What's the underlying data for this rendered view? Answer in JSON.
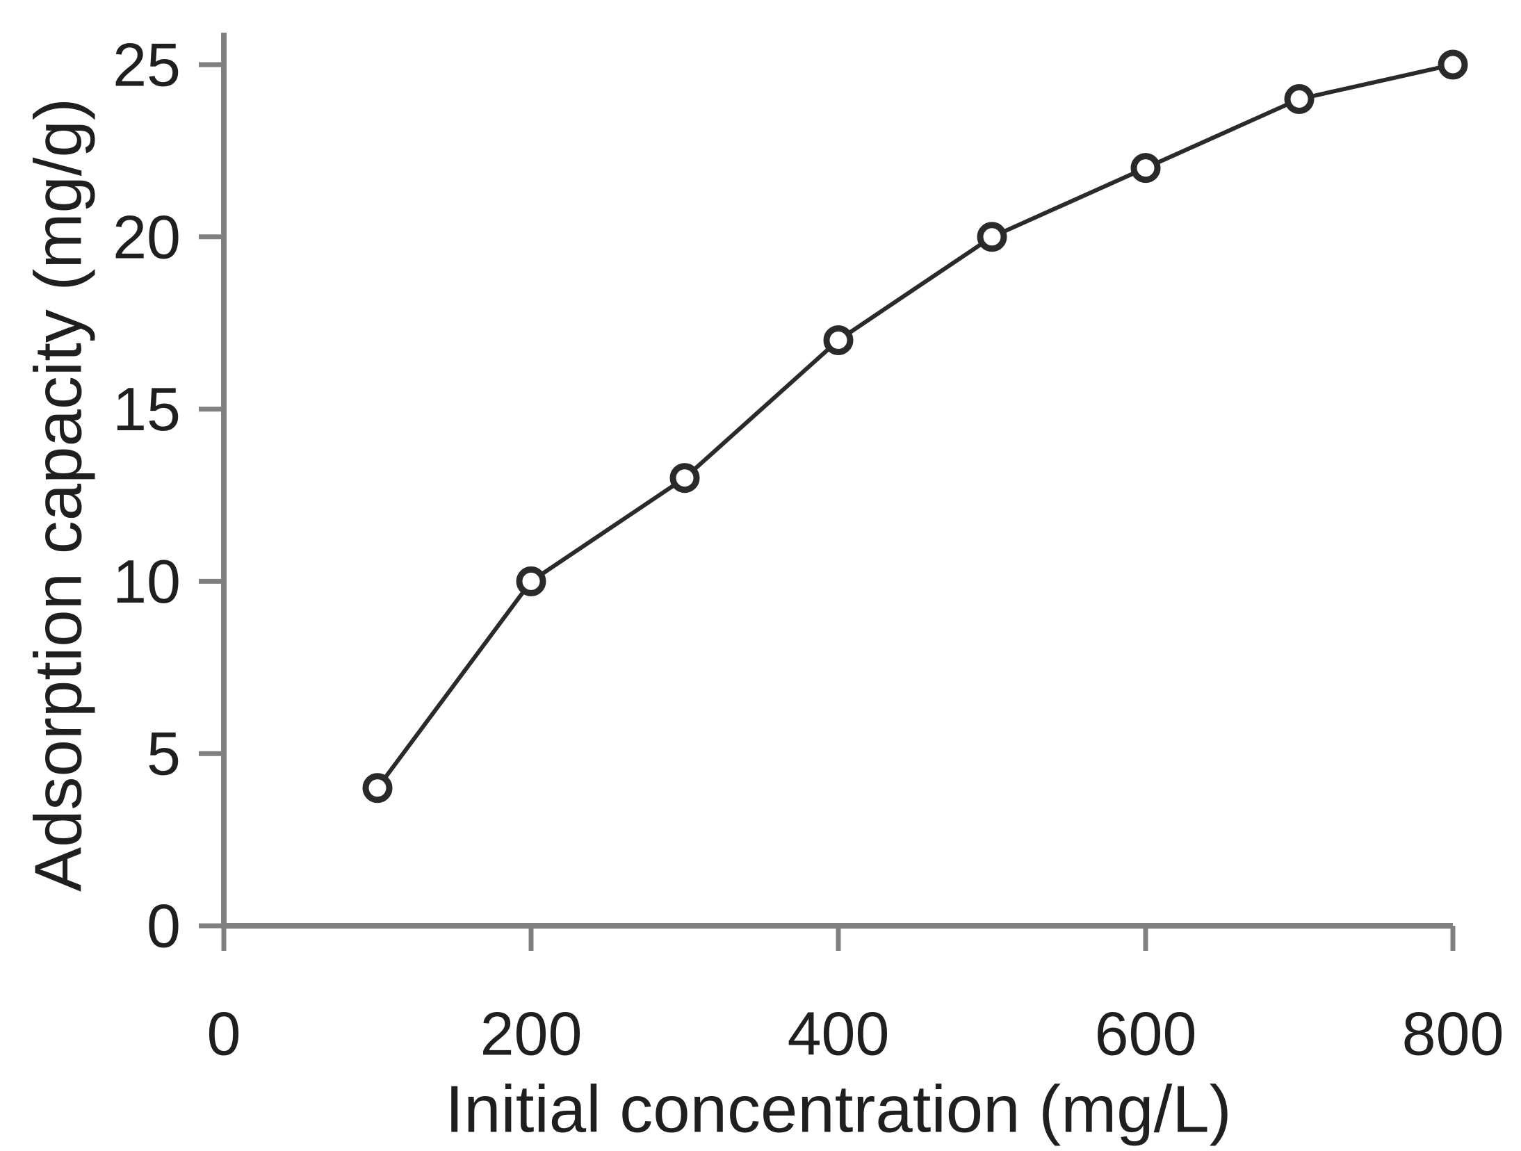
{
  "chart_data": {
    "type": "line",
    "title": "",
    "xlabel": "Initial concentration  (mg/L)",
    "ylabel": "Adsorption capacity (mg/g)",
    "x": [
      100,
      200,
      300,
      400,
      500,
      600,
      700,
      800
    ],
    "series": [
      {
        "name": "Adsorption capacity",
        "values": [
          4,
          10,
          13,
          17,
          20,
          22,
          24,
          25
        ]
      }
    ],
    "xlim": [
      0,
      800
    ],
    "ylim": [
      0,
      25
    ],
    "x_ticks": [
      0,
      200,
      400,
      600,
      800
    ],
    "y_ticks": [
      0,
      5,
      10,
      15,
      20,
      25
    ],
    "grid": false,
    "legend_position": "none",
    "marker_style": "open-circle",
    "colors": {
      "line": "#2a2a2a",
      "marker_stroke": "#2a2a2a",
      "marker_fill": "#ffffff",
      "axis": "#808080",
      "text": "#1f1f1f",
      "background": "#ffffff"
    }
  }
}
